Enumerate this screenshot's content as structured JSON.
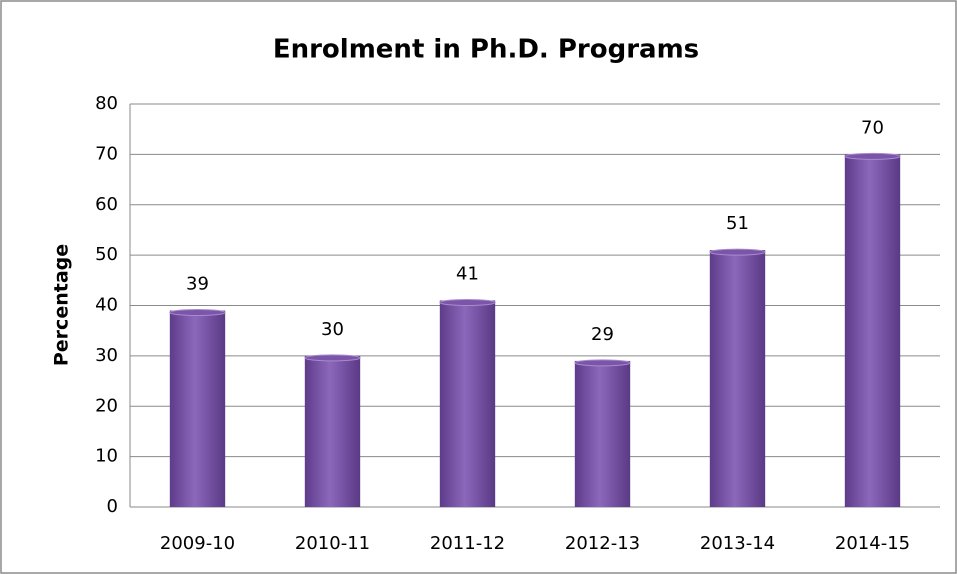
{
  "chart_data": {
    "type": "bar",
    "title": "Enrolment in Ph.D. Programs",
    "y_label": "Percentage",
    "categories": [
      "2009-10",
      "2010-11",
      "2011-12",
      "2012-13",
      "2013-14",
      "2014-15"
    ],
    "values": [
      39,
      30,
      41,
      29,
      51,
      70
    ],
    "color": "#7b56a8",
    "ylim": [
      0,
      80
    ],
    "yticks": [
      0,
      10,
      20,
      30,
      40,
      50,
      60,
      70,
      80
    ],
    "grid": true
  }
}
